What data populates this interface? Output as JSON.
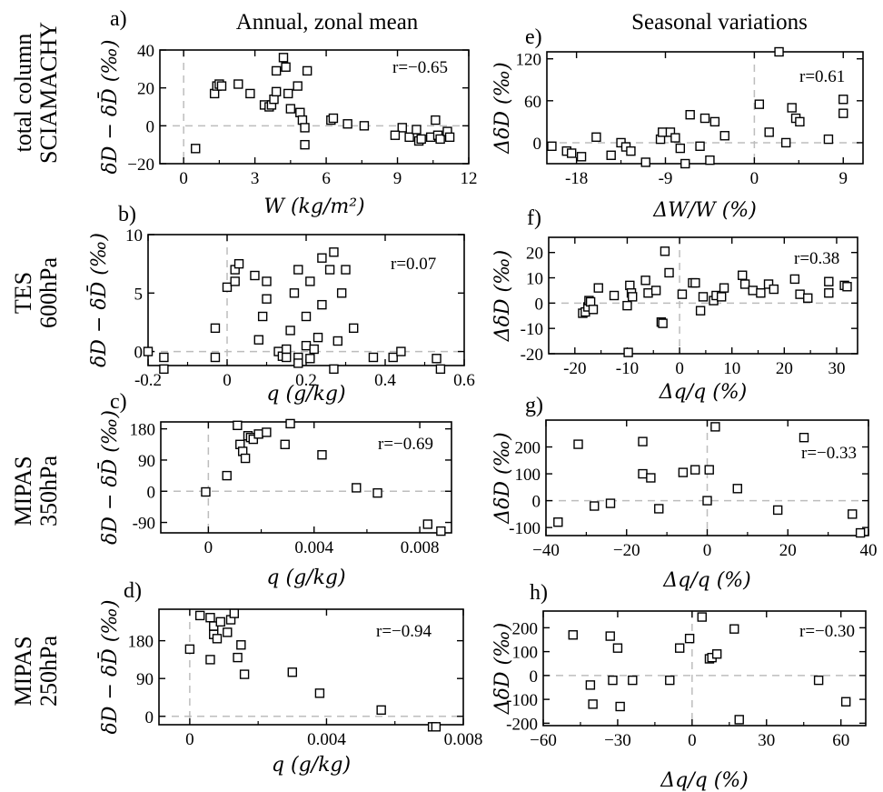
{
  "column_titles": [
    "Annual, zonal mean",
    "Seasonal variations"
  ],
  "row_labels": [
    [
      "total column",
      "SCIAMACHY"
    ],
    [
      "TES",
      "600hPa"
    ],
    [
      "MIPAS",
      "350hPa"
    ],
    [
      "MIPAS",
      "250hPa"
    ]
  ],
  "chart_data": [
    {
      "id": "a",
      "type": "scatter",
      "panel_label": "a)",
      "xlabel": "W (kg/m²)",
      "ylabel": "δD − δD̄ (‰)",
      "annotation": "r=−0.65",
      "xlim": [
        -1,
        12
      ],
      "ylim": [
        -20,
        40
      ],
      "xticks": [
        0,
        3,
        6,
        9,
        12
      ],
      "xtick_labels": [
        "0",
        "3",
        "6",
        "9",
        "12"
      ],
      "yticks": [
        -20,
        0,
        20,
        40
      ],
      "ytick_labels": [
        "−20",
        "0",
        "20",
        "40"
      ],
      "points": [
        [
          0.5,
          -12
        ],
        [
          1.3,
          17
        ],
        [
          1.4,
          21
        ],
        [
          1.5,
          22
        ],
        [
          1.6,
          21
        ],
        [
          2.3,
          22
        ],
        [
          2.8,
          17
        ],
        [
          3.4,
          11
        ],
        [
          3.6,
          10
        ],
        [
          3.7,
          11
        ],
        [
          3.8,
          14
        ],
        [
          3.9,
          18
        ],
        [
          3.9,
          29
        ],
        [
          4.2,
          36
        ],
        [
          4.3,
          31
        ],
        [
          4.4,
          17
        ],
        [
          4.5,
          9
        ],
        [
          4.8,
          21
        ],
        [
          4.9,
          7
        ],
        [
          5.0,
          3
        ],
        [
          5.1,
          -1
        ],
        [
          5.1,
          -10
        ],
        [
          5.2,
          29
        ],
        [
          6.2,
          3
        ],
        [
          6.3,
          4
        ],
        [
          6.9,
          1
        ],
        [
          7.6,
          0
        ],
        [
          9.2,
          -1
        ],
        [
          8.9,
          -5
        ],
        [
          9.5,
          -6
        ],
        [
          9.8,
          -2
        ],
        [
          9.9,
          -8
        ],
        [
          10.0,
          -7
        ],
        [
          10.4,
          -6
        ],
        [
          10.6,
          3
        ],
        [
          10.7,
          -5
        ],
        [
          10.8,
          -7
        ],
        [
          11.1,
          -3
        ],
        [
          11.2,
          -6
        ]
      ],
      "grid": false,
      "dashed_ref_x": 0,
      "dashed_ref_y": 0
    },
    {
      "id": "b",
      "type": "scatter",
      "panel_label": "b)",
      "xlabel": "q (g/kg)",
      "ylabel": "δD − δD̄ (‰)",
      "annotation": "r=0.07",
      "xlim": [
        -0.2,
        0.6
      ],
      "ylim": [
        -1.2,
        10
      ],
      "xticks": [
        -0.2,
        0,
        0.2,
        0.4,
        0.6
      ],
      "xtick_labels": [
        "-0.2",
        "0",
        "0.2",
        "0.4",
        "0.6"
      ],
      "yticks": [
        0,
        5,
        10
      ],
      "ytick_labels": [
        "0",
        "5",
        "10"
      ],
      "points": [
        [
          -0.2,
          0
        ],
        [
          -0.16,
          -0.5
        ],
        [
          -0.16,
          -1.5
        ],
        [
          -0.03,
          2
        ],
        [
          -0.03,
          -0.5
        ],
        [
          0,
          5.5
        ],
        [
          0.02,
          7
        ],
        [
          0.02,
          6
        ],
        [
          0.03,
          7.5
        ],
        [
          0.07,
          6.5
        ],
        [
          0.08,
          1
        ],
        [
          0.09,
          3
        ],
        [
          0.1,
          4.5
        ],
        [
          0.1,
          6
        ],
        [
          0.13,
          0
        ],
        [
          0.14,
          -0.4
        ],
        [
          0.15,
          0.2
        ],
        [
          0.15,
          -0.5
        ],
        [
          0.16,
          1.8
        ],
        [
          0.17,
          5
        ],
        [
          0.18,
          7
        ],
        [
          0.18,
          -0.5
        ],
        [
          0.18,
          -1
        ],
        [
          0.2,
          3
        ],
        [
          0.2,
          0.5
        ],
        [
          0.21,
          6
        ],
        [
          0.21,
          -0.6
        ],
        [
          0.22,
          0.2
        ],
        [
          0.23,
          1.2
        ],
        [
          0.24,
          8
        ],
        [
          0.24,
          4
        ],
        [
          0.26,
          7
        ],
        [
          0.27,
          8.5
        ],
        [
          0.27,
          -1.5
        ],
        [
          0.28,
          0.9
        ],
        [
          0.29,
          5
        ],
        [
          0.3,
          7
        ],
        [
          0.32,
          2
        ],
        [
          0.37,
          -0.5
        ],
        [
          0.42,
          -0.5
        ],
        [
          0.44,
          0
        ],
        [
          0.53,
          -0.6
        ],
        [
          0.54,
          -1.5
        ]
      ],
      "grid": false,
      "dashed_ref_x": 0,
      "dashed_ref_y": 0
    },
    {
      "id": "c",
      "type": "scatter",
      "panel_label": "c)",
      "xlabel": "q (g/kg)",
      "ylabel": "δD − δD̄ (‰)",
      "annotation": "r=−0.69",
      "xlim": [
        -0.0018,
        0.0092
      ],
      "ylim": [
        -120,
        200
      ],
      "xticks": [
        0,
        0.004,
        0.008
      ],
      "xtick_labels": [
        "0",
        "0.004",
        "0.008"
      ],
      "yticks": [
        -90,
        0,
        90,
        180
      ],
      "ytick_labels": [
        "-90",
        "0",
        "90",
        "180"
      ],
      "points": [
        [
          -0.0001,
          -2
        ],
        [
          0.0007,
          45
        ],
        [
          0.0011,
          190
        ],
        [
          0.0012,
          135
        ],
        [
          0.0013,
          115
        ],
        [
          0.0014,
          95
        ],
        [
          0.0015,
          160
        ],
        [
          0.0016,
          155
        ],
        [
          0.0017,
          150
        ],
        [
          0.0019,
          165
        ],
        [
          0.0022,
          170
        ],
        [
          0.0029,
          135
        ],
        [
          0.0031,
          195
        ],
        [
          0.0043,
          105
        ],
        [
          0.0056,
          10
        ],
        [
          0.0064,
          -5
        ],
        [
          0.0083,
          -95
        ],
        [
          0.0088,
          -115
        ]
      ],
      "grid": false,
      "dashed_ref_x": 0,
      "dashed_ref_y": 0
    },
    {
      "id": "d",
      "type": "scatter",
      "panel_label": "d)",
      "xlabel": "q (g/kg)",
      "ylabel": "δD − δD̄ (‰)",
      "annotation": "r=−0.94",
      "xlim": [
        -0.0009,
        0.008
      ],
      "ylim": [
        -20,
        255
      ],
      "xticks": [
        0,
        0.004,
        0.008
      ],
      "xtick_labels": [
        "0",
        "0.004",
        "0.008"
      ],
      "yticks": [
        0,
        90,
        180
      ],
      "ytick_labels": [
        "0",
        "90",
        "180"
      ],
      "points": [
        [
          0,
          160
        ],
        [
          0.0003,
          240
        ],
        [
          0.0006,
          235
        ],
        [
          0.0006,
          135
        ],
        [
          0.0007,
          215
        ],
        [
          0.0007,
          195
        ],
        [
          0.0008,
          185
        ],
        [
          0.0009,
          225
        ],
        [
          0.0011,
          200
        ],
        [
          0.0012,
          230
        ],
        [
          0.0013,
          245
        ],
        [
          0.0014,
          140
        ],
        [
          0.0015,
          170
        ],
        [
          0.0016,
          100
        ],
        [
          0.003,
          105
        ],
        [
          0.0038,
          55
        ],
        [
          0.0056,
          15
        ],
        [
          0.0071,
          -25
        ],
        [
          0.0072,
          -25
        ]
      ],
      "grid": false,
      "dashed_ref_x": 0,
      "dashed_ref_y": 0
    },
    {
      "id": "e",
      "type": "scatter",
      "panel_label": "e)",
      "xlabel": "ΔW/W (%)",
      "ylabel": "ΔδD (‰)",
      "annotation": "r=0.61",
      "xlim": [
        -21,
        11
      ],
      "ylim": [
        -30,
        130
      ],
      "xticks": [
        -18,
        -9,
        0,
        9
      ],
      "xtick_labels": [
        "-18",
        "-9",
        "0",
        "9"
      ],
      "yticks": [
        0,
        60,
        120
      ],
      "ytick_labels": [
        "0",
        "60",
        "120"
      ],
      "points": [
        [
          -20.5,
          -5
        ],
        [
          -19,
          -12
        ],
        [
          -18.5,
          -15
        ],
        [
          -17.5,
          -20
        ],
        [
          -16,
          8
        ],
        [
          -14.5,
          -18
        ],
        [
          -13.5,
          0
        ],
        [
          -13,
          -6
        ],
        [
          -12.5,
          -12
        ],
        [
          -11,
          -28
        ],
        [
          -9.5,
          5
        ],
        [
          -9.3,
          15
        ],
        [
          -8.5,
          15
        ],
        [
          -8,
          7
        ],
        [
          -7.5,
          -8
        ],
        [
          -7,
          -30
        ],
        [
          -6.5,
          40
        ],
        [
          -5.5,
          -5
        ],
        [
          -5,
          35
        ],
        [
          -4.5,
          -25
        ],
        [
          -4,
          30
        ],
        [
          -3,
          10
        ],
        [
          0.5,
          55
        ],
        [
          1.5,
          15
        ],
        [
          2.5,
          130
        ],
        [
          3.2,
          0
        ],
        [
          3.8,
          50
        ],
        [
          4.2,
          35
        ],
        [
          4.6,
          30
        ],
        [
          7.5,
          5
        ],
        [
          9,
          62
        ],
        [
          9,
          42
        ]
      ],
      "grid": false,
      "dashed_ref_x": 0,
      "dashed_ref_y": 0
    },
    {
      "id": "f",
      "type": "scatter",
      "panel_label": "f)",
      "xlabel": "Δq/q (%)",
      "ylabel": "ΔδD (‰)",
      "annotation": "r=0.38",
      "xlim": [
        -25,
        34
      ],
      "ylim": [
        -20,
        26
      ],
      "xticks": [
        -20,
        -10,
        0,
        10,
        20,
        30
      ],
      "xtick_labels": [
        "-20",
        "-10",
        "0",
        "10",
        "20",
        "30"
      ],
      "yticks": [
        -20,
        -10,
        0,
        10,
        20
      ],
      "ytick_labels": [
        "-20",
        "-10",
        "0",
        "10",
        "20"
      ],
      "points": [
        [
          -18.5,
          -4
        ],
        [
          -18,
          -3.5
        ],
        [
          -17.5,
          -1.5
        ],
        [
          -17.3,
          1
        ],
        [
          -17,
          0.5
        ],
        [
          -16.5,
          -2.5
        ],
        [
          -15.5,
          6
        ],
        [
          -12.5,
          3
        ],
        [
          -10,
          -1
        ],
        [
          -9.8,
          -19.5
        ],
        [
          -9.5,
          7
        ],
        [
          -9.2,
          4
        ],
        [
          -9,
          2.5
        ],
        [
          -6.5,
          9
        ],
        [
          -6,
          4
        ],
        [
          -4.5,
          5
        ],
        [
          -3.5,
          -7.5
        ],
        [
          -3.2,
          -8
        ],
        [
          -2.8,
          20.5
        ],
        [
          -2,
          12
        ],
        [
          0.5,
          3.5
        ],
        [
          2.5,
          8
        ],
        [
          3,
          8
        ],
        [
          4,
          -3
        ],
        [
          4.5,
          2.5
        ],
        [
          6.5,
          1
        ],
        [
          7,
          3
        ],
        [
          8,
          2.5
        ],
        [
          8.5,
          6
        ],
        [
          12,
          11
        ],
        [
          12.5,
          7.5
        ],
        [
          14,
          5
        ],
        [
          15.5,
          4
        ],
        [
          17,
          7.5
        ],
        [
          18,
          5.5
        ],
        [
          22,
          9.5
        ],
        [
          23,
          3.5
        ],
        [
          24.5,
          2
        ],
        [
          28.5,
          8.5
        ],
        [
          28.5,
          4
        ],
        [
          31.5,
          7
        ],
        [
          32,
          6.5
        ]
      ],
      "grid": false,
      "dashed_ref_x": 0,
      "dashed_ref_y": 0
    },
    {
      "id": "g",
      "type": "scatter",
      "panel_label": "g)",
      "xlabel": "Δq/q (%)",
      "ylabel": "ΔδD (‰)",
      "annotation": "r=−0.33",
      "xlim": [
        -40,
        40
      ],
      "ylim": [
        -130,
        300
      ],
      "xticks": [
        -40,
        -20,
        0,
        20,
        40
      ],
      "xtick_labels": [
        "−40",
        "−20",
        "0",
        "20",
        "40"
      ],
      "yticks": [
        -100,
        0,
        100,
        200
      ],
      "ytick_labels": [
        "-100",
        "0",
        "100",
        "200"
      ],
      "points": [
        [
          -37,
          -80
        ],
        [
          -32,
          210
        ],
        [
          -28,
          -20
        ],
        [
          -24,
          -10
        ],
        [
          -16,
          220
        ],
        [
          -16,
          100
        ],
        [
          -14,
          85
        ],
        [
          -12,
          -30
        ],
        [
          -6,
          105
        ],
        [
          -3,
          115
        ],
        [
          0,
          0
        ],
        [
          0.5,
          115
        ],
        [
          2,
          275
        ],
        [
          7.5,
          45
        ],
        [
          17.5,
          -35
        ],
        [
          24,
          235
        ],
        [
          36,
          -50
        ],
        [
          38,
          -120
        ]
      ],
      "grid": false,
      "dashed_ref_x": 0,
      "dashed_ref_y": 0
    },
    {
      "id": "h",
      "type": "scatter",
      "panel_label": "h)",
      "xlabel": "Δq/q (%)",
      "ylabel": "ΔδD (‰)",
      "annotation": "r=−0.30",
      "xlim": [
        -60,
        70
      ],
      "ylim": [
        -210,
        270
      ],
      "xticks": [
        -60,
        -30,
        0,
        30,
        60
      ],
      "xtick_labels": [
        "−60",
        "−30",
        "0",
        "30",
        "60"
      ],
      "yticks": [
        -200,
        -100,
        0,
        100,
        200
      ],
      "ytick_labels": [
        "-200",
        "-100",
        "0",
        "100",
        "200"
      ],
      "points": [
        [
          -48,
          170
        ],
        [
          -41,
          -40
        ],
        [
          -40,
          -120
        ],
        [
          -33,
          165
        ],
        [
          -32,
          -20
        ],
        [
          -30,
          115
        ],
        [
          -29,
          -130
        ],
        [
          -24,
          -20
        ],
        [
          -9,
          -20
        ],
        [
          -5,
          115
        ],
        [
          -1,
          155
        ],
        [
          4,
          245
        ],
        [
          7,
          70
        ],
        [
          8,
          75
        ],
        [
          10,
          90
        ],
        [
          17,
          195
        ],
        [
          19,
          -185
        ],
        [
          51,
          -20
        ],
        [
          62,
          -110
        ]
      ],
      "grid": false,
      "dashed_ref_x": 0,
      "dashed_ref_y": 0
    }
  ]
}
